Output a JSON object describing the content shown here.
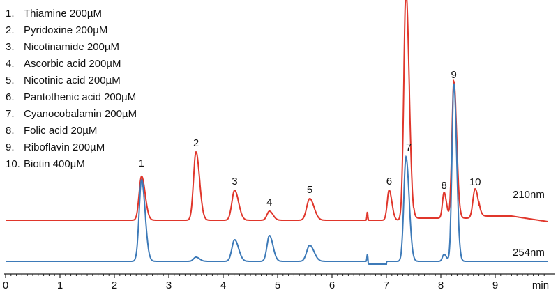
{
  "legend": {
    "items": [
      {
        "num": "1.",
        "text": "Thiamine 200µM"
      },
      {
        "num": "2.",
        "text": "Pyridoxine 200µM"
      },
      {
        "num": "3.",
        "text": "Nicotinamide 200µM"
      },
      {
        "num": "4.",
        "text": "Ascorbic acid 200µM"
      },
      {
        "num": "5.",
        "text": "Nicotinic acid 200µM"
      },
      {
        "num": "6.",
        "text": "Pantothenic acid 200µM"
      },
      {
        "num": "7.",
        "text": "Cyanocobalamin 200µM"
      },
      {
        "num": "8.",
        "text": "Folic acid 20µM"
      },
      {
        "num": "9.",
        "text": "Riboflavin 200µM"
      },
      {
        "num": "10.",
        "text": "Biotin 400µM"
      }
    ]
  },
  "chart_data": {
    "type": "line",
    "title": "",
    "xlabel": "min",
    "ylabel": "",
    "xlim": [
      0,
      10
    ],
    "x_ticks": [
      "0",
      "1",
      "2",
      "3",
      "4",
      "5",
      "6",
      "7",
      "8",
      "9"
    ],
    "colors": {
      "210nm": "#e0362b",
      "254nm": "#3d7ab8"
    },
    "series": [
      {
        "name": "210nm",
        "label": "210nm",
        "baseline": 0,
        "peaks": [
          {
            "label": "1",
            "rt": 2.5,
            "height": 63,
            "width": 0.045
          },
          {
            "label": "2",
            "rt": 3.5,
            "height": 98,
            "width": 0.045
          },
          {
            "label": "3",
            "rt": 4.21,
            "height": 43,
            "width": 0.05
          },
          {
            "label": "4",
            "rt": 4.85,
            "height": 13,
            "width": 0.045
          },
          {
            "label": "5",
            "rt": 5.59,
            "height": 31,
            "width": 0.055
          },
          {
            "label": "6",
            "rt": 7.05,
            "height": 43,
            "width": 0.035
          },
          {
            "label": "7",
            "rt": 7.36,
            "height": 330,
            "width": 0.04
          },
          {
            "label": "8",
            "rt": 8.06,
            "height": 37,
            "width": 0.03
          },
          {
            "label": "9",
            "rt": 8.24,
            "height": 196,
            "width": 0.035
          },
          {
            "label": "10",
            "rt": 8.63,
            "height": 42,
            "width": 0.04
          }
        ]
      },
      {
        "name": "254nm",
        "label": "254nm",
        "baseline": 0,
        "peaks": [
          {
            "label": "1",
            "rt": 2.5,
            "height": 117,
            "width": 0.045
          },
          {
            "label": "",
            "rt": 3.5,
            "height": 6,
            "width": 0.045
          },
          {
            "label": "3",
            "rt": 4.21,
            "height": 31,
            "width": 0.05
          },
          {
            "label": "4",
            "rt": 4.85,
            "height": 37,
            "width": 0.045
          },
          {
            "label": "5",
            "rt": 5.59,
            "height": 23,
            "width": 0.055
          },
          {
            "label": "7",
            "rt": 7.36,
            "height": 150,
            "width": 0.04
          },
          {
            "label": "8",
            "rt": 8.06,
            "height": 10,
            "width": 0.03
          },
          {
            "label": "9",
            "rt": 8.24,
            "height": 255,
            "width": 0.035
          }
        ]
      }
    ]
  }
}
